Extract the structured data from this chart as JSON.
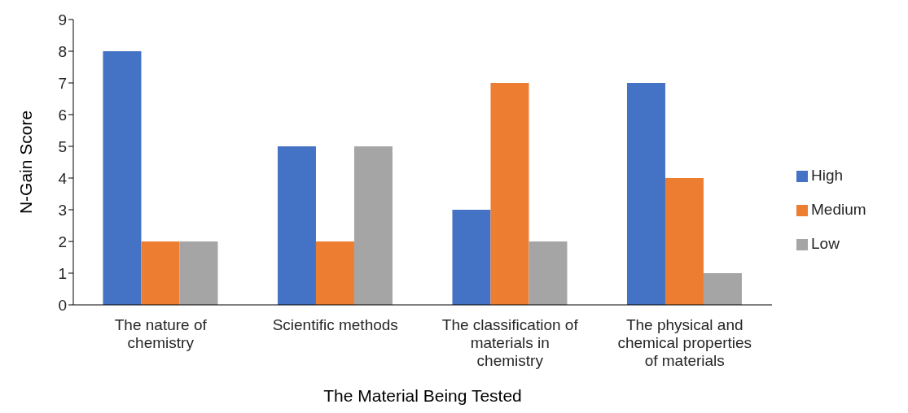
{
  "chart_data": {
    "type": "bar",
    "xlabel": "The Material Being Tested",
    "ylabel": "N-Gain Score",
    "categories": [
      "The nature of chemistry",
      "Scientific methods",
      "The classification of materials in chemistry",
      "The physical and chemical properties of materials"
    ],
    "series": [
      {
        "name": "High",
        "color": "#4472c4",
        "values": [
          8,
          5,
          3,
          7
        ]
      },
      {
        "name": "Medium",
        "color": "#ed7d31",
        "values": [
          2,
          2,
          7,
          4
        ]
      },
      {
        "name": "Low",
        "color": "#a5a5a5",
        "values": [
          2,
          5,
          2,
          1
        ]
      }
    ],
    "ylim": [
      0,
      9
    ],
    "yticks": [
      0,
      1,
      2,
      3,
      4,
      5,
      6,
      7,
      8,
      9
    ],
    "grid": false,
    "legend": "right"
  }
}
